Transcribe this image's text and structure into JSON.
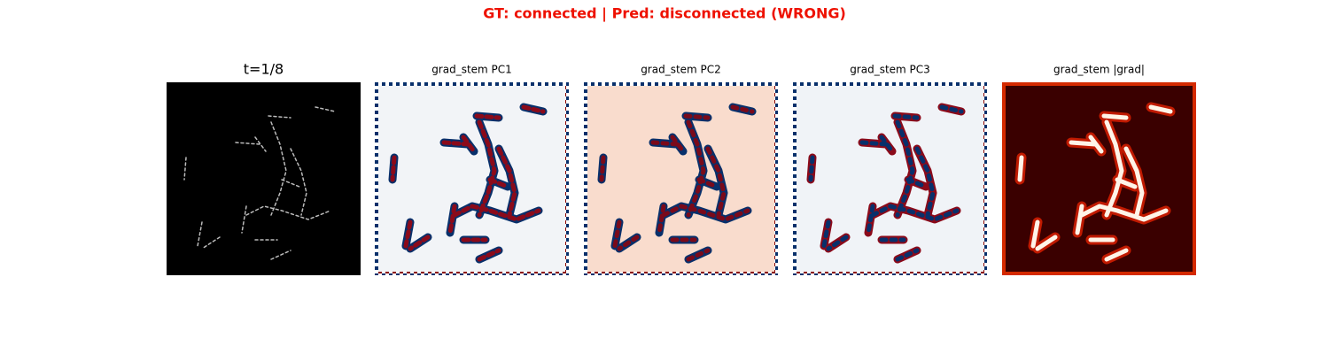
{
  "title": "GT: connected | Pred: disconnected (WRONG)",
  "panels": [
    {
      "title": "t=1/8"
    },
    {
      "title": "grad_stem PC1"
    },
    {
      "title": "grad_stem PC2"
    },
    {
      "title": "grad_stem PC3"
    },
    {
      "title": "grad_stem |grad|"
    }
  ]
}
